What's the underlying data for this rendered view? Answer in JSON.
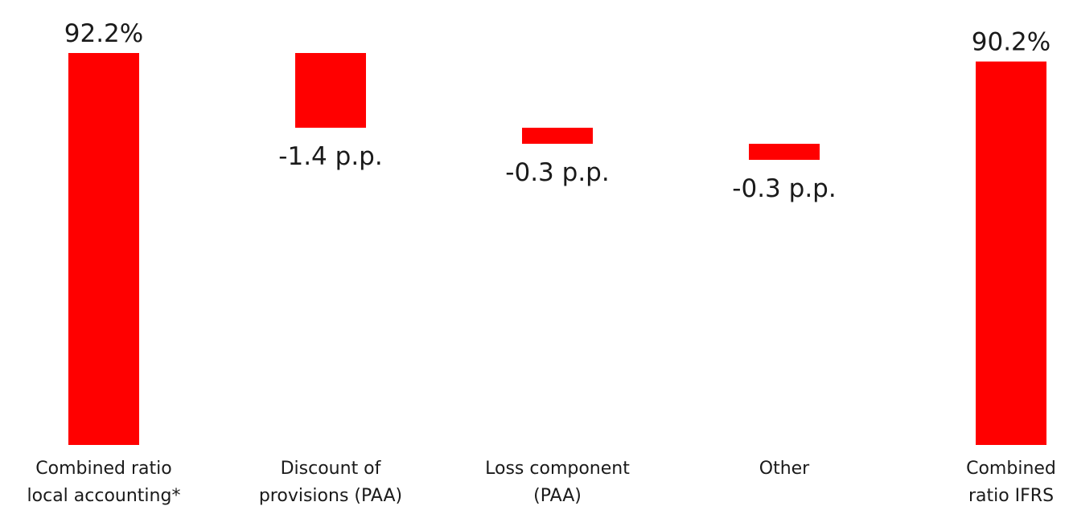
{
  "chart_data": {
    "type": "bar",
    "subtype": "waterfall",
    "categories": [
      [
        "Combined ratio",
        "local accounting*"
      ],
      [
        "Discount of",
        "provisions (PAA)"
      ],
      [
        "Loss component",
        "(PAA)"
      ],
      [
        "Other"
      ],
      [
        "Combined",
        "ratio IFRS"
      ]
    ],
    "values": [
      92.2,
      -1.4,
      -0.3,
      -0.3,
      90.2
    ],
    "kinds": [
      "total",
      "delta",
      "delta",
      "delta",
      "total"
    ],
    "data_labels": [
      "92.2%",
      "-1.4 p.p.",
      "-0.3 p.p.",
      "-0.3 p.p.",
      "90.2%"
    ],
    "title": "",
    "xlabel": "",
    "ylabel": "",
    "ylim": [
      0,
      92.2
    ],
    "grid": false,
    "legend": "none",
    "colors": {
      "bar": "#ff0000",
      "text": "#1a1a1a"
    }
  }
}
